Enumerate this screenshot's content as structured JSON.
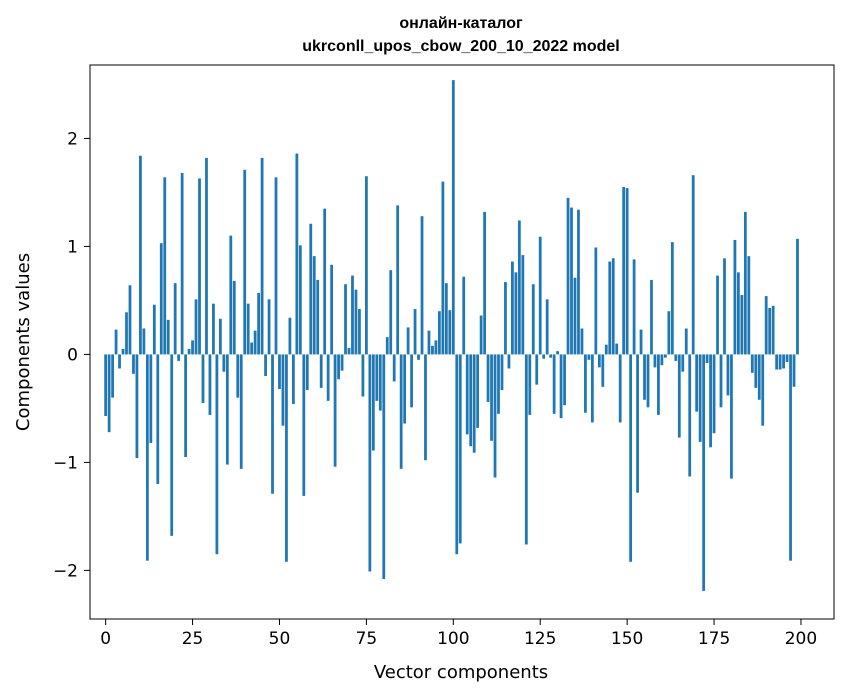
{
  "chart_data": {
    "type": "bar",
    "title_line1": "онлайн-каталог",
    "title_line2": "ukrconll_upos_cbow_200_10_2022 model",
    "xlabel": "Vector components",
    "ylabel": "Components values",
    "xlim": [
      -4.5,
      209.5
    ],
    "ylim": [
      -2.45,
      2.68
    ],
    "xticks": [
      0,
      25,
      50,
      75,
      100,
      125,
      150,
      175,
      200
    ],
    "xtick_labels": [
      "0",
      "25",
      "50",
      "75",
      "100",
      "125",
      "150",
      "175",
      "200"
    ],
    "yticks": [
      -2,
      -1,
      0,
      1,
      2
    ],
    "ytick_labels": [
      "−2",
      "−1",
      "0",
      "1",
      "2"
    ],
    "bar_color": "#1f77b4",
    "grid": false,
    "values": [
      -0.57,
      -0.72,
      -0.4,
      0.23,
      -0.13,
      0.05,
      0.39,
      0.64,
      -0.18,
      -0.96,
      1.84,
      0.24,
      -1.91,
      -0.82,
      0.46,
      -1.2,
      1.03,
      1.64,
      0.32,
      -1.68,
      0.66,
      -0.06,
      1.68,
      -0.95,
      0.05,
      0.13,
      0.51,
      1.63,
      -0.45,
      1.82,
      -0.56,
      0.47,
      -1.85,
      0.33,
      -0.16,
      -1.02,
      1.1,
      0.68,
      -0.4,
      -1.06,
      1.71,
      0.47,
      0.11,
      0.22,
      0.57,
      1.82,
      -0.2,
      0.51,
      -1.29,
      1.64,
      -0.32,
      -0.66,
      -1.92,
      0.34,
      -0.46,
      1.86,
      1.01,
      -1.31,
      -0.33,
      1.21,
      0.91,
      0.69,
      -0.31,
      1.35,
      -0.43,
      0.83,
      -1.04,
      -0.23,
      -0.15,
      0.65,
      0.06,
      0.73,
      0.6,
      0.42,
      -0.39,
      1.65,
      -2.01,
      -0.89,
      -0.43,
      -0.52,
      -2.08,
      0.16,
      0.78,
      -0.25,
      1.38,
      -1.06,
      -0.64,
      0.25,
      -0.49,
      0.42,
      -0.05,
      1.28,
      -0.98,
      0.22,
      0.08,
      0.13,
      0.4,
      1.6,
      0.66,
      0.41,
      2.54,
      -1.85,
      -1.75,
      0.72,
      -0.74,
      -0.85,
      -0.91,
      -0.68,
      0.36,
      1.32,
      -0.44,
      -0.8,
      -1.14,
      -0.55,
      -0.33,
      0.67,
      -0.13,
      0.86,
      0.76,
      1.24,
      0.92,
      -1.76,
      -0.56,
      0.65,
      -0.28,
      1.09,
      -0.04,
      0.51,
      -0.03,
      -0.55,
      0.03,
      -0.59,
      -0.47,
      1.45,
      1.36,
      0.71,
      1.34,
      0.24,
      -0.54,
      -0.05,
      -0.63,
      0.99,
      -0.12,
      -0.3,
      0.09,
      0.86,
      0.89,
      0.1,
      -0.63,
      1.55,
      1.54,
      -1.92,
      0.88,
      -1.28,
      0.23,
      -0.42,
      -0.49,
      0.69,
      -0.12,
      -0.56,
      -0.1,
      -0.03,
      0.4,
      1.04,
      -0.06,
      -0.77,
      -0.16,
      0.24,
      -1.13,
      1.66,
      -0.53,
      -0.81,
      -2.19,
      -0.08,
      -0.86,
      -0.73,
      0.73,
      -0.49,
      0.89,
      -0.38,
      -1.15,
      1.06,
      0.76,
      0.55,
      1.32,
      0.91,
      -0.17,
      -0.31,
      -0.42,
      -0.66,
      0.54,
      0.43,
      0.45,
      -0.14,
      -0.14,
      -0.13,
      -0.07,
      -1.91,
      -0.3,
      1.07
    ]
  }
}
